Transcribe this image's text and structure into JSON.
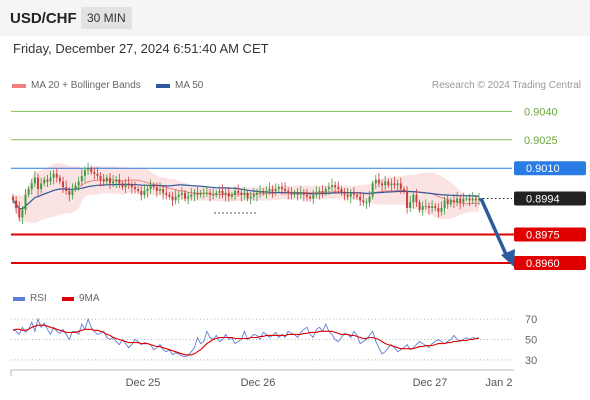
{
  "header": {
    "symbol": "USD/CHF",
    "timeframe": "30 MIN"
  },
  "datetime": "Friday, December 27, 2024 6:51:40 AM CET",
  "credit": "Research © 2024 Trading Central",
  "legend": [
    {
      "label": "MA 20 + Bollinger Bands",
      "color": "#f08080"
    },
    {
      "label": "MA 50",
      "color": "#2c5a9c"
    }
  ],
  "rsi_legend": [
    {
      "label": "RSI",
      "color": "#5b7fd6"
    },
    {
      "label": "9MA",
      "color": "#e00000"
    }
  ],
  "chart_data": [
    {
      "type": "candlestick",
      "ylim": [
        0.8951,
        0.9046
      ],
      "x_ticks": [
        "Dec 25",
        "Dec 26",
        "Dec 27",
        "Jan 2"
      ],
      "levels": [
        {
          "value": 0.904,
          "label": "0.9040",
          "color": "#7cc050",
          "style": "thin"
        },
        {
          "value": 0.9025,
          "label": "0.9025",
          "color": "#7cc050",
          "style": "thin"
        },
        {
          "value": 0.901,
          "label": "0.9010",
          "color": "#2a7be4",
          "style": "thin",
          "badge": true
        },
        {
          "value": 0.8994,
          "label": "0.8994",
          "color": "#222222",
          "style": "dotted",
          "badge": true
        },
        {
          "value": 0.8975,
          "label": "0.8975",
          "color": "#e00000",
          "style": "thick",
          "badge": true
        },
        {
          "value": 0.896,
          "label": "0.8960",
          "color": "#e00000",
          "style": "thick",
          "badge": true
        }
      ],
      "forecast_arrow": {
        "from": 0.8994,
        "to": 0.896,
        "color": "#2c5a9c"
      },
      "close": [
        0.8993,
        0.8989,
        0.8984,
        0.8988,
        0.8996,
        0.8999,
        0.9002,
        0.9005,
        0.8999,
        0.9002,
        0.9004,
        0.9003,
        0.9005,
        0.9007,
        0.9005,
        0.9003,
        0.9,
        0.8998,
        0.8996,
        0.8999,
        0.9001,
        0.9003,
        0.9006,
        0.9009,
        0.901,
        0.9008,
        0.9007,
        0.9006,
        0.9004,
        0.9003,
        0.9005,
        0.9002,
        0.9003,
        0.9004,
        0.9002,
        0.9,
        0.9002,
        0.9001,
        0.9,
        0.8999,
        0.8998,
        0.8996,
        0.8998,
        0.8999,
        0.9001,
        0.9,
        0.8998,
        0.8999,
        0.8997,
        0.8996,
        0.8995,
        0.8993,
        0.8995,
        0.8996,
        0.8997,
        0.8994,
        0.8995,
        0.8996,
        0.8997,
        0.8996,
        0.8997,
        0.8997,
        0.8997,
        0.8996,
        0.8996,
        0.8997,
        0.8998,
        0.8996,
        0.8997,
        0.8995,
        0.8996,
        0.8998,
        0.8997,
        0.8996,
        0.8997,
        0.8994,
        0.8995,
        0.8996,
        0.8997,
        0.8998,
        0.8997,
        0.8998,
        0.8999,
        0.8998,
        0.8999,
        0.9,
        0.8999,
        0.8998,
        0.8997,
        0.8996,
        0.8997,
        0.8996,
        0.8997,
        0.8996,
        0.8995,
        0.8994,
        0.8996,
        0.8997,
        0.8998,
        0.8997,
        0.8999,
        0.9,
        0.9001,
        0.9,
        0.8999,
        0.8997,
        0.8996,
        0.8995,
        0.8997,
        0.8996,
        0.8995,
        0.8993,
        0.8992,
        0.8992,
        0.8995,
        0.9002,
        0.9004,
        0.9002,
        0.9001,
        0.9003,
        0.9001,
        0.9002,
        0.9001,
        0.9002,
        0.8999,
        0.8998,
        0.8989,
        0.8992,
        0.8996,
        0.8992,
        0.8988,
        0.899,
        0.899,
        0.8989,
        0.899,
        0.8989,
        0.8987,
        0.8989,
        0.8993,
        0.8991,
        0.8993,
        0.8992,
        0.8994,
        0.8992,
        0.8994,
        0.8994,
        0.8993,
        0.8994,
        0.8993,
        0.8994
      ]
    },
    {
      "type": "line",
      "title": "RSI",
      "ylim": [
        25,
        75
      ],
      "y_ticks": [
        70,
        50,
        30
      ],
      "series": [
        {
          "name": "RSI",
          "color": "#5b7fd6",
          "values": [
            60,
            58,
            55,
            62,
            57,
            60,
            67,
            58,
            70,
            62,
            66,
            60,
            55,
            62,
            58,
            56,
            60,
            55,
            50,
            58,
            58,
            55,
            65,
            60,
            70,
            62,
            58,
            55,
            56,
            58,
            52,
            50,
            52,
            48,
            45,
            50,
            46,
            42,
            45,
            50,
            48,
            45,
            47,
            46,
            45,
            40,
            42,
            45,
            40,
            38,
            40,
            35,
            37,
            36,
            34,
            33,
            34,
            38,
            42,
            52,
            46,
            48,
            58,
            52,
            50,
            54,
            48,
            50,
            55,
            50,
            52,
            46,
            48,
            50,
            58,
            50,
            52,
            55,
            54,
            50,
            57,
            55,
            52,
            54,
            57,
            52,
            55,
            52,
            58,
            56,
            55,
            52,
            57,
            60,
            62,
            55,
            52,
            60,
            62,
            58,
            65,
            58,
            55,
            50,
            48,
            52,
            56,
            55,
            52,
            58,
            54,
            46,
            48,
            50,
            54,
            58,
            48,
            42,
            36,
            38,
            42,
            45,
            42,
            38,
            40,
            42,
            45,
            40,
            42,
            45,
            48,
            46,
            44,
            42,
            46,
            48,
            50,
            48,
            46,
            48,
            50,
            54,
            50,
            48,
            50,
            52,
            50,
            52,
            51,
            52
          ]
        },
        {
          "name": "9MA",
          "color": "#e00000",
          "values": [
            59,
            60,
            60,
            59,
            59,
            60,
            62,
            63,
            64,
            64,
            64,
            63,
            62,
            61,
            60,
            59,
            58,
            57,
            57,
            57,
            57,
            58,
            59,
            60,
            60,
            60,
            59,
            59,
            58,
            57,
            55,
            54,
            52,
            51,
            50,
            49,
            48,
            47,
            47,
            47,
            47,
            46,
            46,
            46,
            45,
            44,
            43,
            43,
            42,
            41,
            40,
            39,
            38,
            37,
            36,
            35,
            35,
            35,
            36,
            38,
            40,
            43,
            46,
            48,
            50,
            51,
            52,
            52,
            52,
            52,
            52,
            51,
            51,
            51,
            51,
            51,
            52,
            52,
            52,
            53,
            53,
            54,
            54,
            54,
            54,
            54,
            54,
            54,
            55,
            55,
            55,
            55,
            55,
            56,
            56,
            57,
            57,
            57,
            58,
            58,
            58,
            58,
            58,
            57,
            56,
            55,
            55,
            55,
            54,
            54,
            53,
            52,
            51,
            51,
            52,
            52,
            51,
            50,
            48,
            46,
            45,
            44,
            43,
            42,
            41,
            41,
            41,
            41,
            41,
            42,
            43,
            43,
            44,
            44,
            44,
            45,
            46,
            46,
            46,
            47,
            47,
            48,
            48,
            49,
            49,
            49,
            50,
            50,
            51,
            51
          ]
        }
      ]
    }
  ]
}
